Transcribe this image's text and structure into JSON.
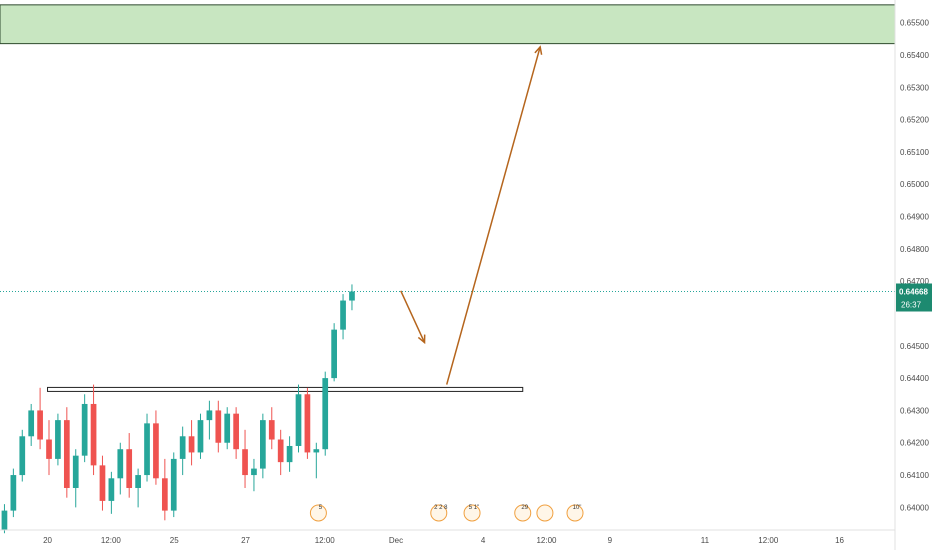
{
  "chart_data": {
    "type": "candlestick",
    "symbol": "",
    "ylim": [
      0.6393,
      0.6557
    ],
    "y_ticks": [
      "0.65500",
      "0.65400",
      "0.65300",
      "0.65200",
      "0.65100",
      "0.65000",
      "0.64900",
      "0.64800",
      "0.64700",
      "0.64500",
      "0.64400",
      "0.64300",
      "0.64200",
      "0.64100",
      "0.64000"
    ],
    "x_ticks": [
      "20",
      "12:00",
      "25",
      "27",
      "12:00",
      "Dec",
      "4",
      "12:00",
      "9",
      "11",
      "12:00",
      "16"
    ],
    "x_tick_positions": [
      0.5,
      4.5,
      8.5,
      13.0,
      18.0,
      22.5,
      28.0,
      32.0,
      36.0,
      42.0,
      46.0,
      50.5
    ],
    "x_range": [
      -2.5,
      54.0
    ],
    "last_price": "0.64668",
    "countdown": "26:37",
    "colors": {
      "up": "#26a69a",
      "down": "#ef5350",
      "zone_fill": "#c8e6c1",
      "zone_border": "#2e4a2e",
      "arrow": "#b5651d"
    },
    "resistance_zone": {
      "top": 0.65555,
      "bottom": 0.65435
    },
    "support_line": {
      "value": 0.64365,
      "x_start": 0.5,
      "x_end": 30.5
    },
    "projection": [
      {
        "x1": 22.8,
        "y1": 0.6467,
        "x2": 24.3,
        "y2": 0.6451
      },
      {
        "x1": 25.7,
        "y1": 0.6438,
        "x2": 31.6,
        "y2": 0.65425
      }
    ],
    "events": [
      {
        "x": 17.6,
        "label": "5"
      },
      {
        "x": 25.2,
        "label": "2 2 8"
      },
      {
        "x": 27.3,
        "label": "5 1\""
      },
      {
        "x": 30.5,
        "label": "29"
      },
      {
        "x": 31.9,
        "label": ""
      },
      {
        "x": 33.8,
        "label": "10\""
      }
    ],
    "ohlc": [
      [
        0.6393,
        0.6401,
        0.6392,
        0.6399
      ],
      [
        0.6399,
        0.6412,
        0.6397,
        0.641
      ],
      [
        0.641,
        0.6424,
        0.6408,
        0.6422
      ],
      [
        0.6422,
        0.6432,
        0.6419,
        0.643
      ],
      [
        0.643,
        0.6437,
        0.6418,
        0.6421
      ],
      [
        0.6421,
        0.6427,
        0.641,
        0.6415
      ],
      [
        0.6415,
        0.6429,
        0.6413,
        0.6427
      ],
      [
        0.6427,
        0.6431,
        0.6403,
        0.6406
      ],
      [
        0.6406,
        0.6418,
        0.64,
        0.6416
      ],
      [
        0.6416,
        0.6435,
        0.6414,
        0.6432
      ],
      [
        0.6432,
        0.6438,
        0.641,
        0.6413
      ],
      [
        0.6413,
        0.6416,
        0.6399,
        0.6402
      ],
      [
        0.6402,
        0.6411,
        0.6398,
        0.6409
      ],
      [
        0.6409,
        0.642,
        0.6404,
        0.6418
      ],
      [
        0.6418,
        0.6423,
        0.6403,
        0.6406
      ],
      [
        0.6406,
        0.6412,
        0.64,
        0.641
      ],
      [
        0.641,
        0.6429,
        0.6408,
        0.6426
      ],
      [
        0.6426,
        0.643,
        0.6407,
        0.6409
      ],
      [
        0.6409,
        0.6415,
        0.6396,
        0.6399
      ],
      [
        0.6399,
        0.6417,
        0.6397,
        0.6415
      ],
      [
        0.6415,
        0.6425,
        0.641,
        0.6422
      ],
      [
        0.6422,
        0.6427,
        0.6413,
        0.6417
      ],
      [
        0.6417,
        0.6429,
        0.6415,
        0.6427
      ],
      [
        0.6427,
        0.6433,
        0.6421,
        0.643
      ],
      [
        0.643,
        0.6433,
        0.6417,
        0.642
      ],
      [
        0.642,
        0.6431,
        0.6418,
        0.6429
      ],
      [
        0.6429,
        0.6431,
        0.6415,
        0.6418
      ],
      [
        0.6418,
        0.6424,
        0.6406,
        0.641
      ],
      [
        0.641,
        0.6415,
        0.6405,
        0.6412
      ],
      [
        0.6412,
        0.6429,
        0.6409,
        0.6427
      ],
      [
        0.6427,
        0.6431,
        0.6418,
        0.6421
      ],
      [
        0.6421,
        0.6424,
        0.641,
        0.6414
      ],
      [
        0.6414,
        0.6422,
        0.6411,
        0.6419
      ],
      [
        0.6419,
        0.6438,
        0.6417,
        0.6435
      ],
      [
        0.6435,
        0.6437,
        0.6415,
        0.6417
      ],
      [
        0.6417,
        0.642,
        0.6409,
        0.6418
      ],
      [
        0.6418,
        0.6442,
        0.6416,
        0.644
      ],
      [
        0.644,
        0.6457,
        0.6439,
        0.6455
      ],
      [
        0.6455,
        0.6466,
        0.6452,
        0.6464
      ],
      [
        0.6464,
        0.6469,
        0.6461,
        0.64668
      ]
    ]
  }
}
